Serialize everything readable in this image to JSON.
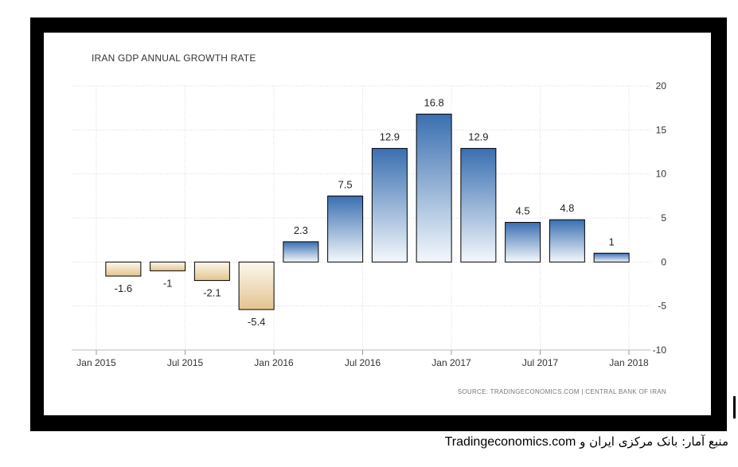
{
  "caption": {
    "text": "منبع آمار: بانک مرکزی ایران و",
    "site": "Tradingeconomics.com"
  },
  "chart_data": {
    "type": "bar",
    "title": "IRAN GDP ANNUAL GROWTH RATE",
    "source": "SOURCE: TRADINGECONOMICS.COM | CENTRAL BANK OF IRAN",
    "xlabel": "",
    "ylabel": "",
    "ylim": [
      -10,
      20
    ],
    "yticks": [
      20,
      15,
      10,
      5,
      0,
      -5,
      -10
    ],
    "xticks": [
      "Jan 2015",
      "Jul 2015",
      "Jan 2016",
      "Jul 2016",
      "Jan 2017",
      "Jul 2017",
      "Jan 2018"
    ],
    "grid": true,
    "values": [
      -1.6,
      -1,
      -2.1,
      -5.4,
      2.3,
      7.5,
      12.9,
      16.8,
      12.9,
      4.5,
      4.8,
      1
    ],
    "colors": {
      "positive_top": "#3a6fb0",
      "positive_bottom": "#f4f8fc",
      "negative_top": "#fdf8ee",
      "negative_bottom": "#e2c48e"
    }
  }
}
